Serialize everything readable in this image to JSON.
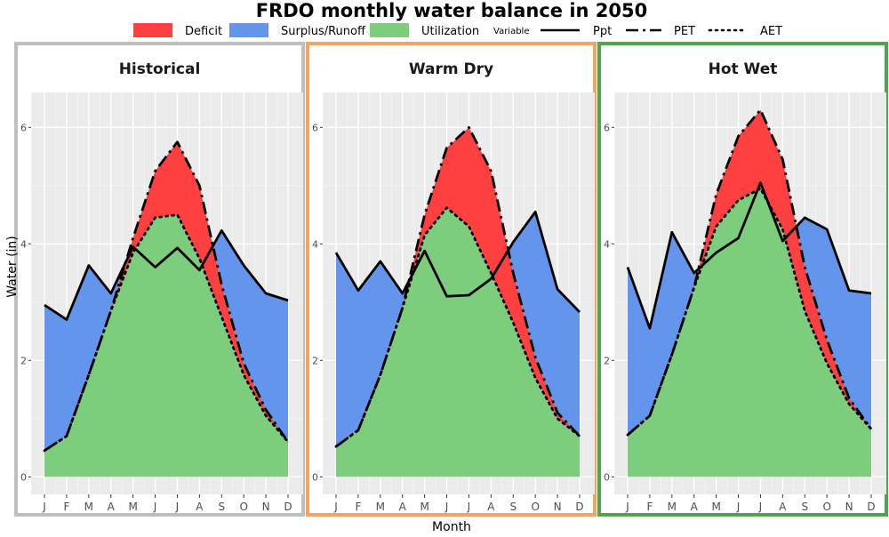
{
  "chart_data": {
    "type": "area",
    "title": "FRDO monthly water balance in 2050",
    "xlabel": "Month",
    "ylabel": "Water (in)",
    "ylim": [
      -0.3,
      6.6
    ],
    "yticks": [
      0,
      2,
      4,
      6
    ],
    "grid": true,
    "legend_position": "top",
    "categories": [
      "J",
      "F",
      "M",
      "A",
      "M",
      "J",
      "J",
      "A",
      "S",
      "O",
      "N",
      "D"
    ],
    "legend": {
      "fill_items": [
        {
          "label": "Deficit",
          "color": "#ff4040"
        },
        {
          "label": "Surplus/Runoff",
          "color": "#6495ed"
        },
        {
          "label": "Utilization",
          "color": "#7ccd7c"
        }
      ],
      "line_title": "Variable",
      "line_items": [
        {
          "label": "Ppt",
          "dash": "solid"
        },
        {
          "label": "PET",
          "dash": "longdash-dot"
        },
        {
          "label": "AET",
          "dash": "dotted"
        }
      ]
    },
    "panels": [
      {
        "label": "Historical",
        "border_color": "#bebebe",
        "series": [
          {
            "name": "Ppt",
            "values": [
              2.95,
              2.7,
              3.63,
              3.15,
              3.95,
              3.6,
              3.93,
              3.55,
              4.23,
              3.63,
              3.15,
              3.03
            ]
          },
          {
            "name": "PET",
            "values": [
              0.45,
              0.7,
              1.75,
              2.85,
              4.1,
              5.25,
              5.75,
              5.0,
              3.3,
              1.95,
              1.15,
              0.6
            ]
          },
          {
            "name": "AET",
            "values": [
              0.45,
              0.7,
              1.75,
              2.85,
              3.85,
              4.45,
              4.5,
              3.75,
              2.75,
              1.75,
              1.05,
              0.6
            ]
          }
        ]
      },
      {
        "label": "Warm Dry",
        "border_color": "#f4a460",
        "series": [
          {
            "name": "Ppt",
            "values": [
              3.85,
              3.2,
              3.7,
              3.15,
              3.88,
              3.1,
              3.12,
              3.4,
              4.03,
              4.55,
              3.22,
              2.83
            ]
          },
          {
            "name": "PET",
            "values": [
              0.52,
              0.8,
              1.75,
              2.9,
              4.5,
              5.65,
              6.0,
              5.25,
              3.5,
              2.05,
              1.1,
              0.7
            ]
          },
          {
            "name": "AET",
            "values": [
              0.52,
              0.8,
              1.75,
              2.9,
              4.15,
              4.62,
              4.3,
              3.5,
              2.65,
              1.7,
              1.0,
              0.7
            ]
          }
        ]
      },
      {
        "label": "Hot Wet",
        "border_color": "#4ca64c",
        "series": [
          {
            "name": "Ppt",
            "values": [
              3.6,
              2.55,
              4.2,
              3.5,
              3.85,
              4.1,
              5.05,
              4.05,
              4.45,
              4.25,
              3.2,
              3.15
            ]
          },
          {
            "name": "PET",
            "values": [
              0.72,
              1.05,
              2.1,
              3.25,
              4.85,
              5.85,
              6.3,
              5.45,
              3.6,
              2.35,
              1.35,
              0.82
            ]
          },
          {
            "name": "AET",
            "values": [
              0.72,
              1.05,
              2.1,
              3.25,
              4.3,
              4.75,
              4.95,
              4.25,
              2.85,
              1.95,
              1.25,
              0.82
            ]
          }
        ]
      }
    ]
  }
}
